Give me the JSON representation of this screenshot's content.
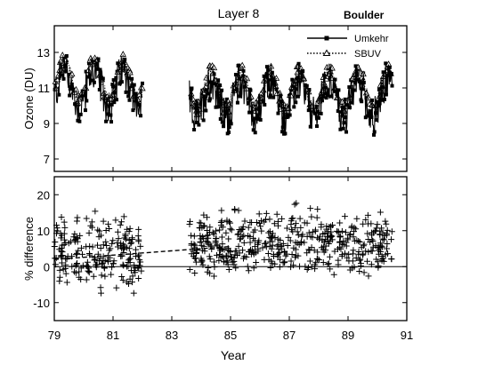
{
  "chart_data": [
    {
      "type": "line",
      "title": "Layer 8",
      "annotation": "Boulder",
      "ylabel": "Ozone (DU)",
      "xlim": [
        79,
        91
      ],
      "ylim": [
        6.3,
        14.5
      ],
      "yticks": [
        7,
        9,
        11,
        13
      ],
      "legend": {
        "placement": "top-right"
      },
      "gaps": [
        [
          82.0,
          83.6
        ]
      ],
      "series": [
        {
          "name": "Umkehr",
          "style": "solid line with filled square markers",
          "color": "#000000",
          "seasonal_mean_daily": 10.4,
          "seasonal_amplitude_daily": 1.0,
          "approx_range": [
            7.8,
            13.8
          ],
          "x": [
            79.0,
            79.4,
            79.8,
            80.2,
            80.6,
            81.0,
            81.3,
            81.6,
            81.9,
            83.6,
            84.0,
            84.5,
            85.0,
            85.5,
            86.0,
            86.5,
            87.0,
            87.5,
            88.0,
            88.5,
            89.0,
            89.5,
            90.0,
            90.5
          ],
          "y": [
            11.2,
            10.3,
            11.8,
            10.2,
            11.4,
            10.6,
            12.4,
            10.8,
            10.9,
            9.2,
            10.4,
            9.6,
            10.7,
            9.8,
            11.0,
            10.0,
            10.3,
            9.6,
            10.8,
            9.7,
            10.4,
            9.6,
            10.0,
            9.1
          ]
        },
        {
          "name": "SBUV",
          "style": "dotted line with open triangle markers",
          "color": "#000000",
          "approx_range": [
            8.5,
            12.9
          ],
          "x": [
            79.0,
            79.4,
            79.8,
            80.2,
            80.6,
            81.0,
            81.3,
            81.6,
            81.9,
            83.6,
            84.0,
            84.5,
            85.0,
            85.5,
            86.0,
            86.5,
            87.0,
            87.5,
            88.0,
            88.5,
            89.0,
            89.5,
            90.0,
            90.5
          ],
          "y": [
            11.0,
            10.6,
            11.5,
            10.5,
            11.2,
            10.8,
            11.5,
            11.0,
            10.8,
            9.9,
            10.9,
            10.2,
            11.1,
            10.4,
            11.2,
            10.5,
            10.9,
            10.3,
            11.1,
            10.3,
            10.9,
            10.3,
            10.6,
            9.8
          ]
        }
      ]
    },
    {
      "type": "scatter",
      "xlabel": "Year",
      "ylabel": "% difference",
      "xlim": [
        79,
        91
      ],
      "ylim": [
        -15,
        25
      ],
      "xticks": [
        79,
        81,
        83,
        85,
        87,
        89,
        91
      ],
      "yticks": [
        -10,
        0,
        10,
        20
      ],
      "zero_line": true,
      "marker": "plus",
      "gaps": [
        [
          82.0,
          83.6
        ]
      ],
      "approx_range": [
        -13,
        24
      ],
      "trend_line": {
        "style": "dashed",
        "x": [
          79.0,
          85.0
        ],
        "y": [
          2.0,
          5.6
        ]
      },
      "groups": [
        {
          "x_range": [
            79.0,
            82.0
          ],
          "mean": 3.0,
          "spread": 9.0
        },
        {
          "x_range": [
            83.6,
            90.5
          ],
          "mean": 6.5,
          "spread": 8.0
        }
      ]
    }
  ]
}
